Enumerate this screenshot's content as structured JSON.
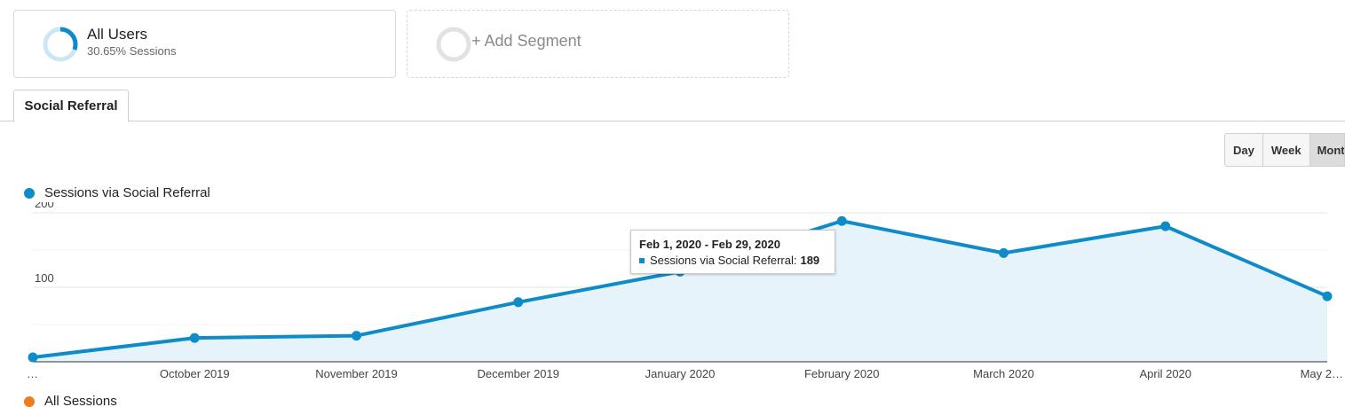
{
  "segments": {
    "active": {
      "title": "All Users",
      "subtitle": "30.65% Sessions",
      "percent": 30.65
    },
    "add_label": "+ Add Segment"
  },
  "tabs": [
    {
      "label": "Social Referral"
    }
  ],
  "granularity": [
    {
      "label": "Day"
    },
    {
      "label": "Week"
    },
    {
      "label": "Mont",
      "selected": true
    }
  ],
  "legend": {
    "primary": "Sessions via Social Referral",
    "secondary": "All Sessions"
  },
  "colors": {
    "primary": "#0f8cc8",
    "secondary": "#ee7d1f",
    "area": "#e6f3fa",
    "ring_track": "#cde6f3"
  },
  "tooltip": {
    "title": "Feb 1, 2020 - Feb 29, 2020",
    "label": "Sessions via Social Referral:",
    "value": "189"
  },
  "chart_data": {
    "type": "area",
    "x": [
      "…",
      "October 2019",
      "November 2019",
      "December 2019",
      "January 2020",
      "February 2020",
      "March 2020",
      "April 2020",
      "May 2…"
    ],
    "series": [
      {
        "name": "Sessions via Social Referral",
        "values": [
          6,
          32,
          35,
          80,
          121,
          189,
          146,
          182,
          88
        ]
      }
    ],
    "yticks": [
      100,
      200
    ],
    "ylim": [
      0,
      200
    ]
  }
}
